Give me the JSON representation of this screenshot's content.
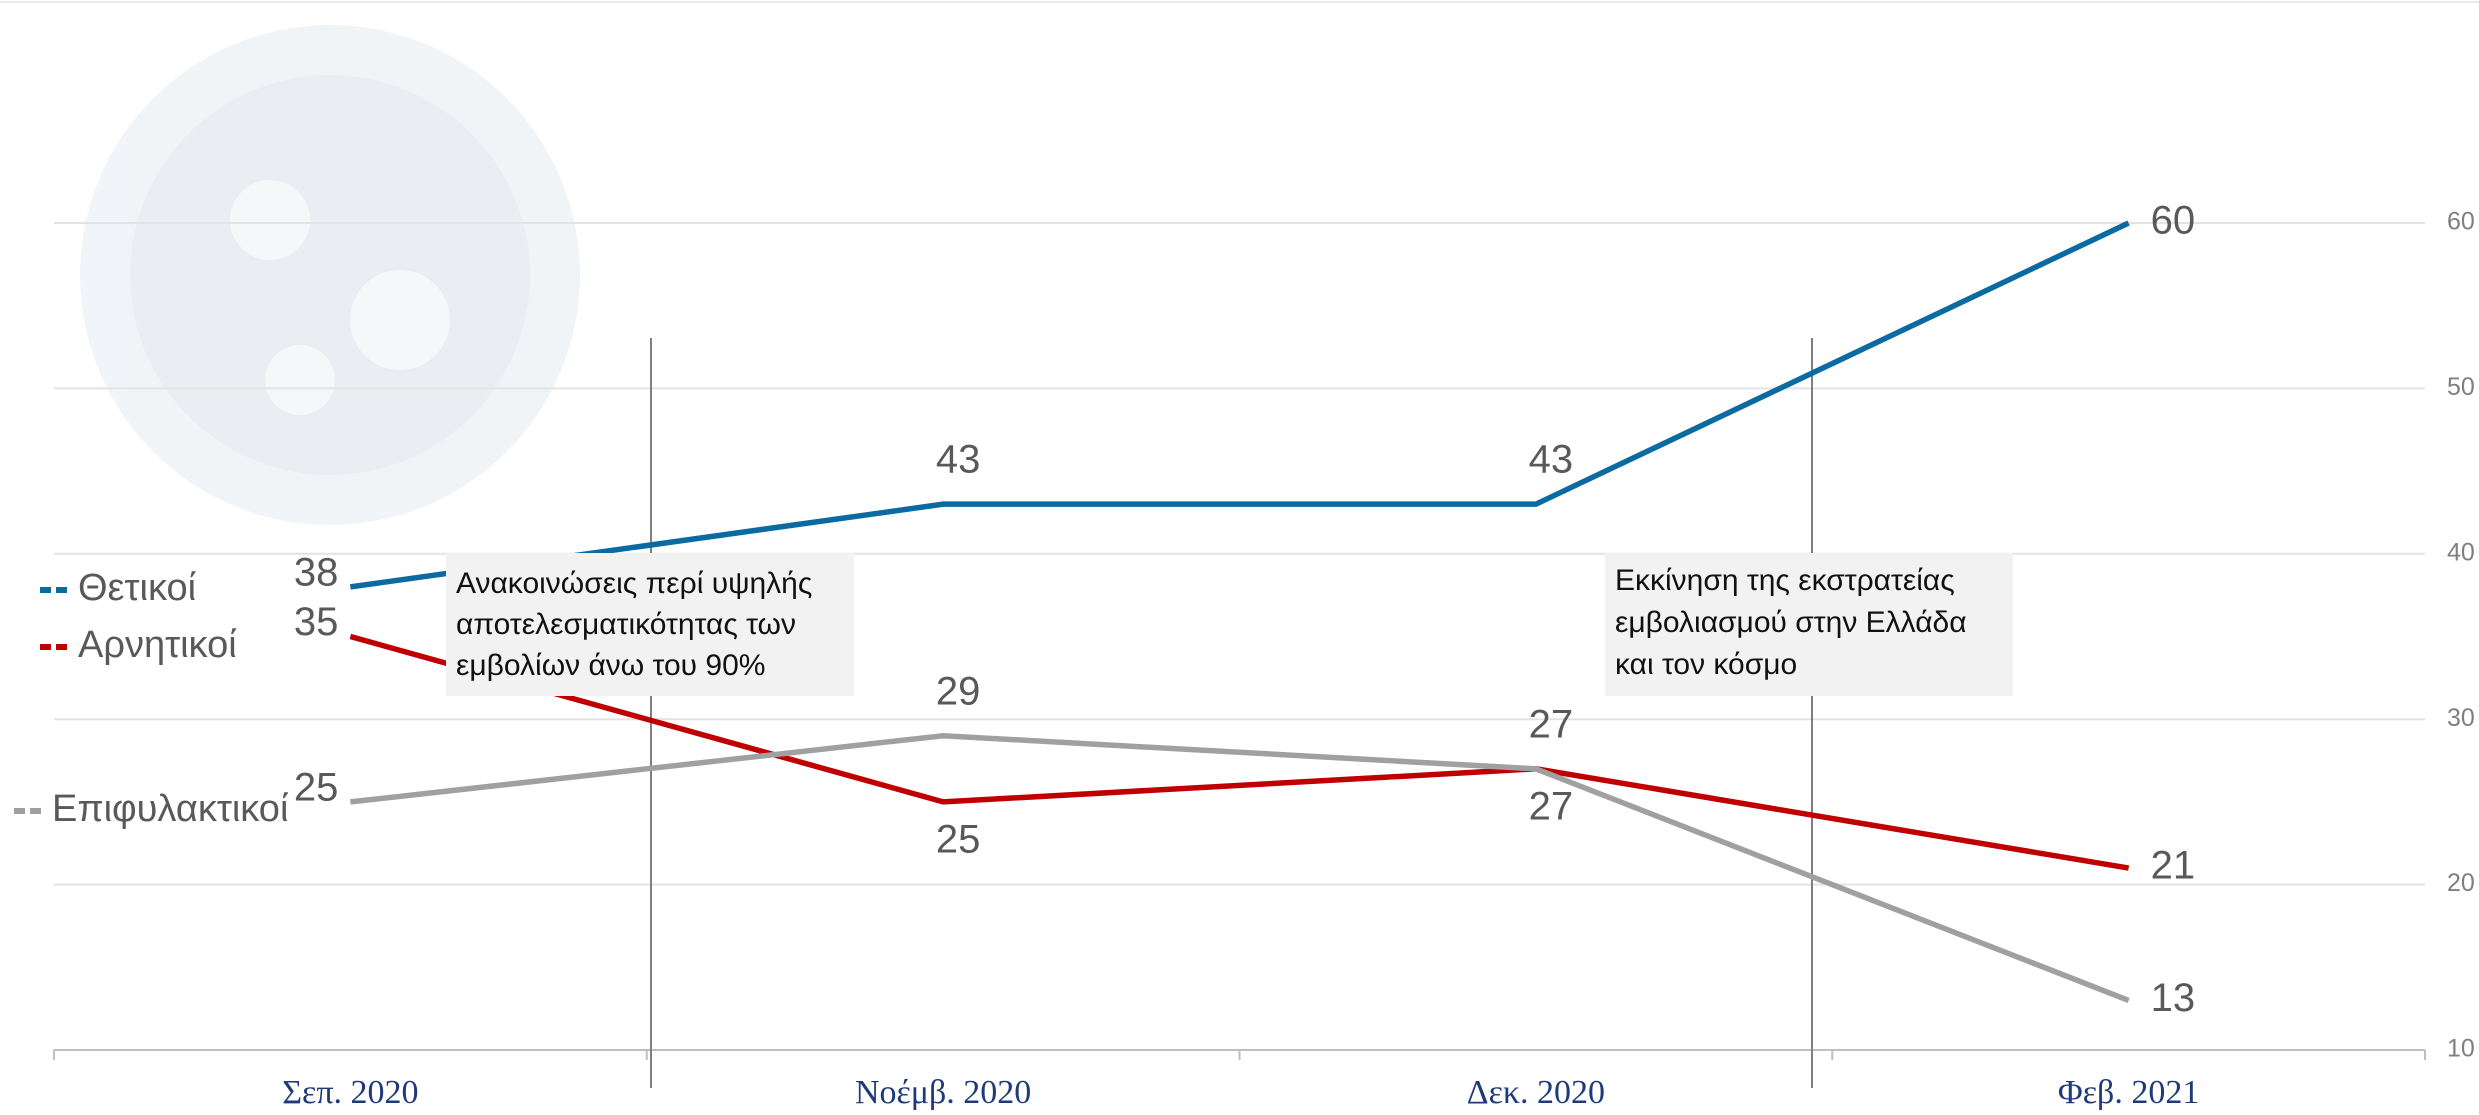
{
  "chart_data": {
    "type": "line",
    "categories": [
      "Σεπ. 2020",
      "Νοέμβ. 2020",
      "Δεκ. 2020",
      "Φεβ. 2021"
    ],
    "series": [
      {
        "name": "Θετικοί",
        "color": "#0a6aa1",
        "values": [
          38,
          43,
          43,
          60
        ]
      },
      {
        "name": "Αρνητικοί",
        "color": "#c00000",
        "values": [
          35,
          25,
          27,
          21
        ]
      },
      {
        "name": "Επιφυλακτικοί",
        "color": "#a0a0a0",
        "values": [
          25,
          29,
          27,
          13
        ]
      }
    ],
    "ylim": [
      10,
      70
    ],
    "yticks": [
      10,
      20,
      30,
      40,
      50,
      60
    ],
    "grid": true,
    "annotations": [
      [
        "Ανακοινώσεις περί υψηλής",
        "αποτελεσματικότητας των",
        "εμβολίων άνω του 90%"
      ],
      [
        "Εκκίνηση της εκστρατείας",
        "εμβολιασμού στην Ελλάδα",
        "και τον κόσμο"
      ]
    ]
  }
}
